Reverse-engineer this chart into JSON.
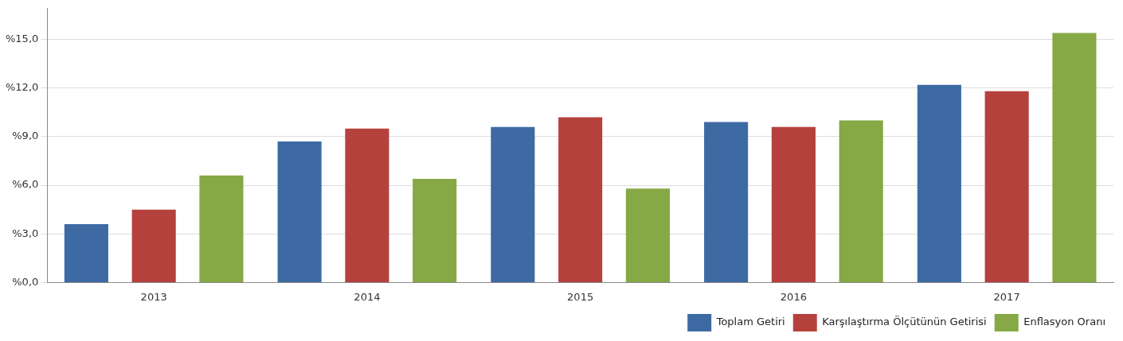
{
  "chart_data": {
    "type": "bar",
    "categories": [
      "2013",
      "2014",
      "2015",
      "2016",
      "2017"
    ],
    "series": [
      {
        "name": "Toplam Getiri",
        "color": "#3e6aa3",
        "values": [
          3.6,
          8.7,
          9.6,
          9.9,
          12.2
        ]
      },
      {
        "name": "Karşılaştırma Ölçütünün Getirisi",
        "color": "#b5413d",
        "values": [
          4.5,
          9.5,
          10.2,
          9.6,
          11.8
        ]
      },
      {
        "name": "Enflasyon Oranı",
        "color": "#86a845",
        "values": [
          6.6,
          6.4,
          5.8,
          10.0,
          15.4
        ]
      }
    ],
    "ylim": [
      0,
      16.9
    ],
    "yticks": [
      {
        "value": 0,
        "label": "%0,0"
      },
      {
        "value": 3,
        "label": "%3,0"
      },
      {
        "value": 6,
        "label": "%6,0"
      },
      {
        "value": 9,
        "label": "%9,0"
      },
      {
        "value": 12,
        "label": "%12,0"
      },
      {
        "value": 15,
        "label": "%15,0"
      }
    ],
    "grid": "y",
    "legend": "bottom right"
  }
}
